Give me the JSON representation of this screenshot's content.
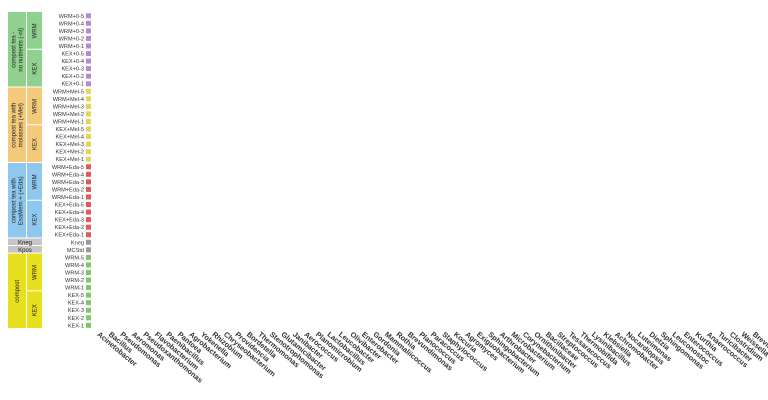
{
  "chart_data": {
    "type": "scatter",
    "title": "",
    "xlabel": "",
    "ylabel": "",
    "groups": [
      {
        "label": "compost tea -\nno nutrients (-nl)",
        "color": "#8fd18f",
        "rows_from": 0,
        "rows_to": 9,
        "subgroups": [
          {
            "label": "WRM",
            "rows_from": 0,
            "rows_to": 4
          },
          {
            "label": "KEX",
            "rows_from": 5,
            "rows_to": 9
          }
        ]
      },
      {
        "label": "compost tea with\nmolasses (+Mel)",
        "color": "#f5c97a",
        "rows_from": 10,
        "rows_to": 19,
        "subgroups": [
          {
            "label": "WRM",
            "rows_from": 10,
            "rows_to": 14
          },
          {
            "label": "KEX",
            "rows_from": 15,
            "rows_to": 19
          }
        ]
      },
      {
        "label": "compost tea with\nEsaMem + (+Eda)",
        "color": "#8ec8ee",
        "rows_from": 20,
        "rows_to": 29,
        "subgroups": [
          {
            "label": "WRM",
            "rows_from": 20,
            "rows_to": 24
          },
          {
            "label": "KEX",
            "rows_from": 25,
            "rows_to": 29
          }
        ]
      },
      {
        "label": "Kneg",
        "color": "#c6c6c6",
        "rows_from": 30,
        "rows_to": 30,
        "subgroups": []
      },
      {
        "label": "Kpos",
        "color": "#c6c6c6",
        "rows_from": 31,
        "rows_to": 31,
        "subgroups": []
      },
      {
        "label": "compost",
        "color": "#e8e01c",
        "rows_from": 32,
        "rows_to": 41,
        "subgroups": [
          {
            "label": "WRM",
            "rows_from": 32,
            "rows_to": 36
          },
          {
            "label": "KEX",
            "rows_from": 37,
            "rows_to": 41
          }
        ]
      }
    ],
    "row_labels": [
      "WRM+0-5",
      "WRM+0-4",
      "WRM+0-3",
      "WRM+0-2",
      "WRM+0-1",
      "KEX+0-5",
      "KEX+0-4",
      "KEX+0-3",
      "KEX+0-2",
      "KEX+0-1",
      "WRM+Mel-5",
      "WRM+Mel-4",
      "WRM+Mel-3",
      "WRM+Mel-2",
      "WRM+Mel-1",
      "KEX+Mel-5",
      "KEX+Mel-4",
      "KEX+Mel-3",
      "KEX+Mel-2",
      "KEX+Mel-1",
      "WRM+Eda-5",
      "WRM+Eda-4",
      "WRM+Eda-3",
      "WRM+Eda-2",
      "WRM+Eda-1",
      "KEX+Eda-5",
      "KEX+Eda-4",
      "KEX+Eda-3",
      "KEX+Eda-2",
      "KEX+Eda-1",
      "Kneg",
      "MCStd",
      "WRM-5",
      "WRM-4",
      "WRM-3",
      "WRM-2",
      "WRM-1",
      "KEX-5",
      "KEX-4",
      "KEX-3",
      "KEX-2",
      "KEX-1"
    ],
    "row_colors": [
      "#b48ad0",
      "#b48ad0",
      "#b48ad0",
      "#b48ad0",
      "#b48ad0",
      "#b48ad0",
      "#b48ad0",
      "#b48ad0",
      "#b48ad0",
      "#b48ad0",
      "#e3d650",
      "#e3d650",
      "#e3d650",
      "#e3d650",
      "#e3d650",
      "#e3d650",
      "#e3d650",
      "#e3d650",
      "#e3d650",
      "#e3d650",
      "#de5a5a",
      "#de5a5a",
      "#de5a5a",
      "#de5a5a",
      "#de5a5a",
      "#de5a5a",
      "#de5a5a",
      "#de5a5a",
      "#de5a5a",
      "#de5a5a",
      "#9a9a9a",
      "#9a9a9a",
      "#7fc56a",
      "#7fc56a",
      "#7fc56a",
      "#7fc56a",
      "#7fc56a",
      "#7fc56a",
      "#7fc56a",
      "#7fc56a",
      "#7fc56a",
      "#7fc56a"
    ],
    "columns": [
      "Acinetobacter",
      "Bacillus",
      "Pseudomonas",
      "Aeromonas",
      "Pseudoxanthomonas",
      "Flavobacterium",
      "Paenibacillus",
      "Pantoea",
      "Agrobacterium",
      "Yokenella",
      "Rhizobium",
      "Chryseobacterium",
      "Providencia",
      "Bordetella",
      "Thermomonas",
      "Stenotrophomonas",
      "Glutamicibacter",
      "Janibacter",
      "Aerococcus",
      "Planomicrobium",
      "Lactobacillus",
      "Leucobacter",
      "Olivibacter",
      "Enterobacter",
      "Gordonia",
      "Mammaliicoccus",
      "Rothia",
      "Brevundimonas",
      "Planococcus",
      "Paracoccus",
      "Staphylococcus",
      "Kocuria",
      "Agromyces",
      "Exiguobacterium",
      "Sphingobacterium",
      "Arthrobacter",
      "Microbacterium",
      "Corynebacterium",
      "Ornithinibacter",
      "Bacillaceae",
      "Streptococcus",
      "Tessaracoccus",
      "Thermobifida",
      "Lysinibacillus",
      "Klebsiella",
      "Achromobacter",
      "Nocardiopsis",
      "Luteimonas",
      "Dietzia",
      "Sphingomonas",
      "Leuconostoc",
      "Enterococcus",
      "Kurthia",
      "Anaerococcus",
      "Turicibacter",
      "Clostridium",
      "Weissella",
      "Brevibacillus"
    ],
    "column_labels_note": "",
    "values": [],
    "size_legend": []
  }
}
